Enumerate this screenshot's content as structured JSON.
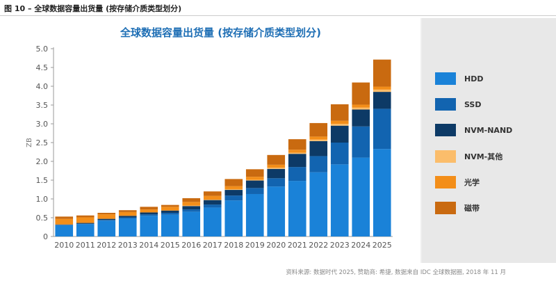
{
  "figure_label": "图 10 – 全球数据容量出货量 (按存储介质类型划分)",
  "source_note": "资料来源: 数据时代 2025, 赞助商: 希捷, 数据来自 IDC 全球数据圈, 2018 年 11 月",
  "chart_data": {
    "type": "bar",
    "stacked": true,
    "title": "全球数据容量出货量 (按存储介质类型划分)",
    "xlabel": "",
    "ylabel": "ZB",
    "ylim": [
      0,
      5
    ],
    "yticks": [
      "0",
      "0.5",
      "1.0",
      "1.5",
      "2.0",
      "2.5",
      "3.0",
      "3.5",
      "4.0",
      "4.5",
      "5.0"
    ],
    "grid": false,
    "legend_position": "right",
    "categories": [
      "2010",
      "2011",
      "2012",
      "2013",
      "2014",
      "2015",
      "2016",
      "2017",
      "2018",
      "2019",
      "2020",
      "2021",
      "2022",
      "2023",
      "2024",
      "2025"
    ],
    "series": [
      {
        "name": "HDD",
        "color": "#1a82d8",
        "values": [
          0.3,
          0.33,
          0.42,
          0.48,
          0.55,
          0.58,
          0.66,
          0.77,
          0.96,
          1.13,
          1.33,
          1.48,
          1.71,
          1.92,
          2.1,
          2.33
        ]
      },
      {
        "name": "SSD",
        "color": "#1264b0",
        "values": [
          0.01,
          0.01,
          0.02,
          0.03,
          0.04,
          0.05,
          0.06,
          0.08,
          0.13,
          0.16,
          0.22,
          0.37,
          0.43,
          0.58,
          0.83,
          1.07
        ]
      },
      {
        "name": "NVM-NAND",
        "color": "#0d3a66",
        "values": [
          0.01,
          0.02,
          0.03,
          0.04,
          0.05,
          0.06,
          0.09,
          0.12,
          0.15,
          0.2,
          0.25,
          0.35,
          0.4,
          0.45,
          0.45,
          0.45
        ]
      },
      {
        "name": "NVM-其他",
        "color": "#fbbd6b",
        "values": [
          0.0,
          0.0,
          0.0,
          0.0,
          0.0,
          0.0,
          0.01,
          0.01,
          0.02,
          0.02,
          0.03,
          0.03,
          0.04,
          0.05,
          0.05,
          0.06
        ]
      },
      {
        "name": "光学",
        "color": "#f38e19",
        "values": [
          0.15,
          0.15,
          0.12,
          0.1,
          0.08,
          0.1,
          0.1,
          0.1,
          0.08,
          0.08,
          0.08,
          0.08,
          0.08,
          0.08,
          0.08,
          0.08
        ]
      },
      {
        "name": "磁带",
        "color": "#c96a10",
        "values": [
          0.06,
          0.05,
          0.04,
          0.05,
          0.07,
          0.05,
          0.1,
          0.12,
          0.19,
          0.2,
          0.26,
          0.28,
          0.36,
          0.44,
          0.59,
          0.72
        ]
      }
    ]
  }
}
